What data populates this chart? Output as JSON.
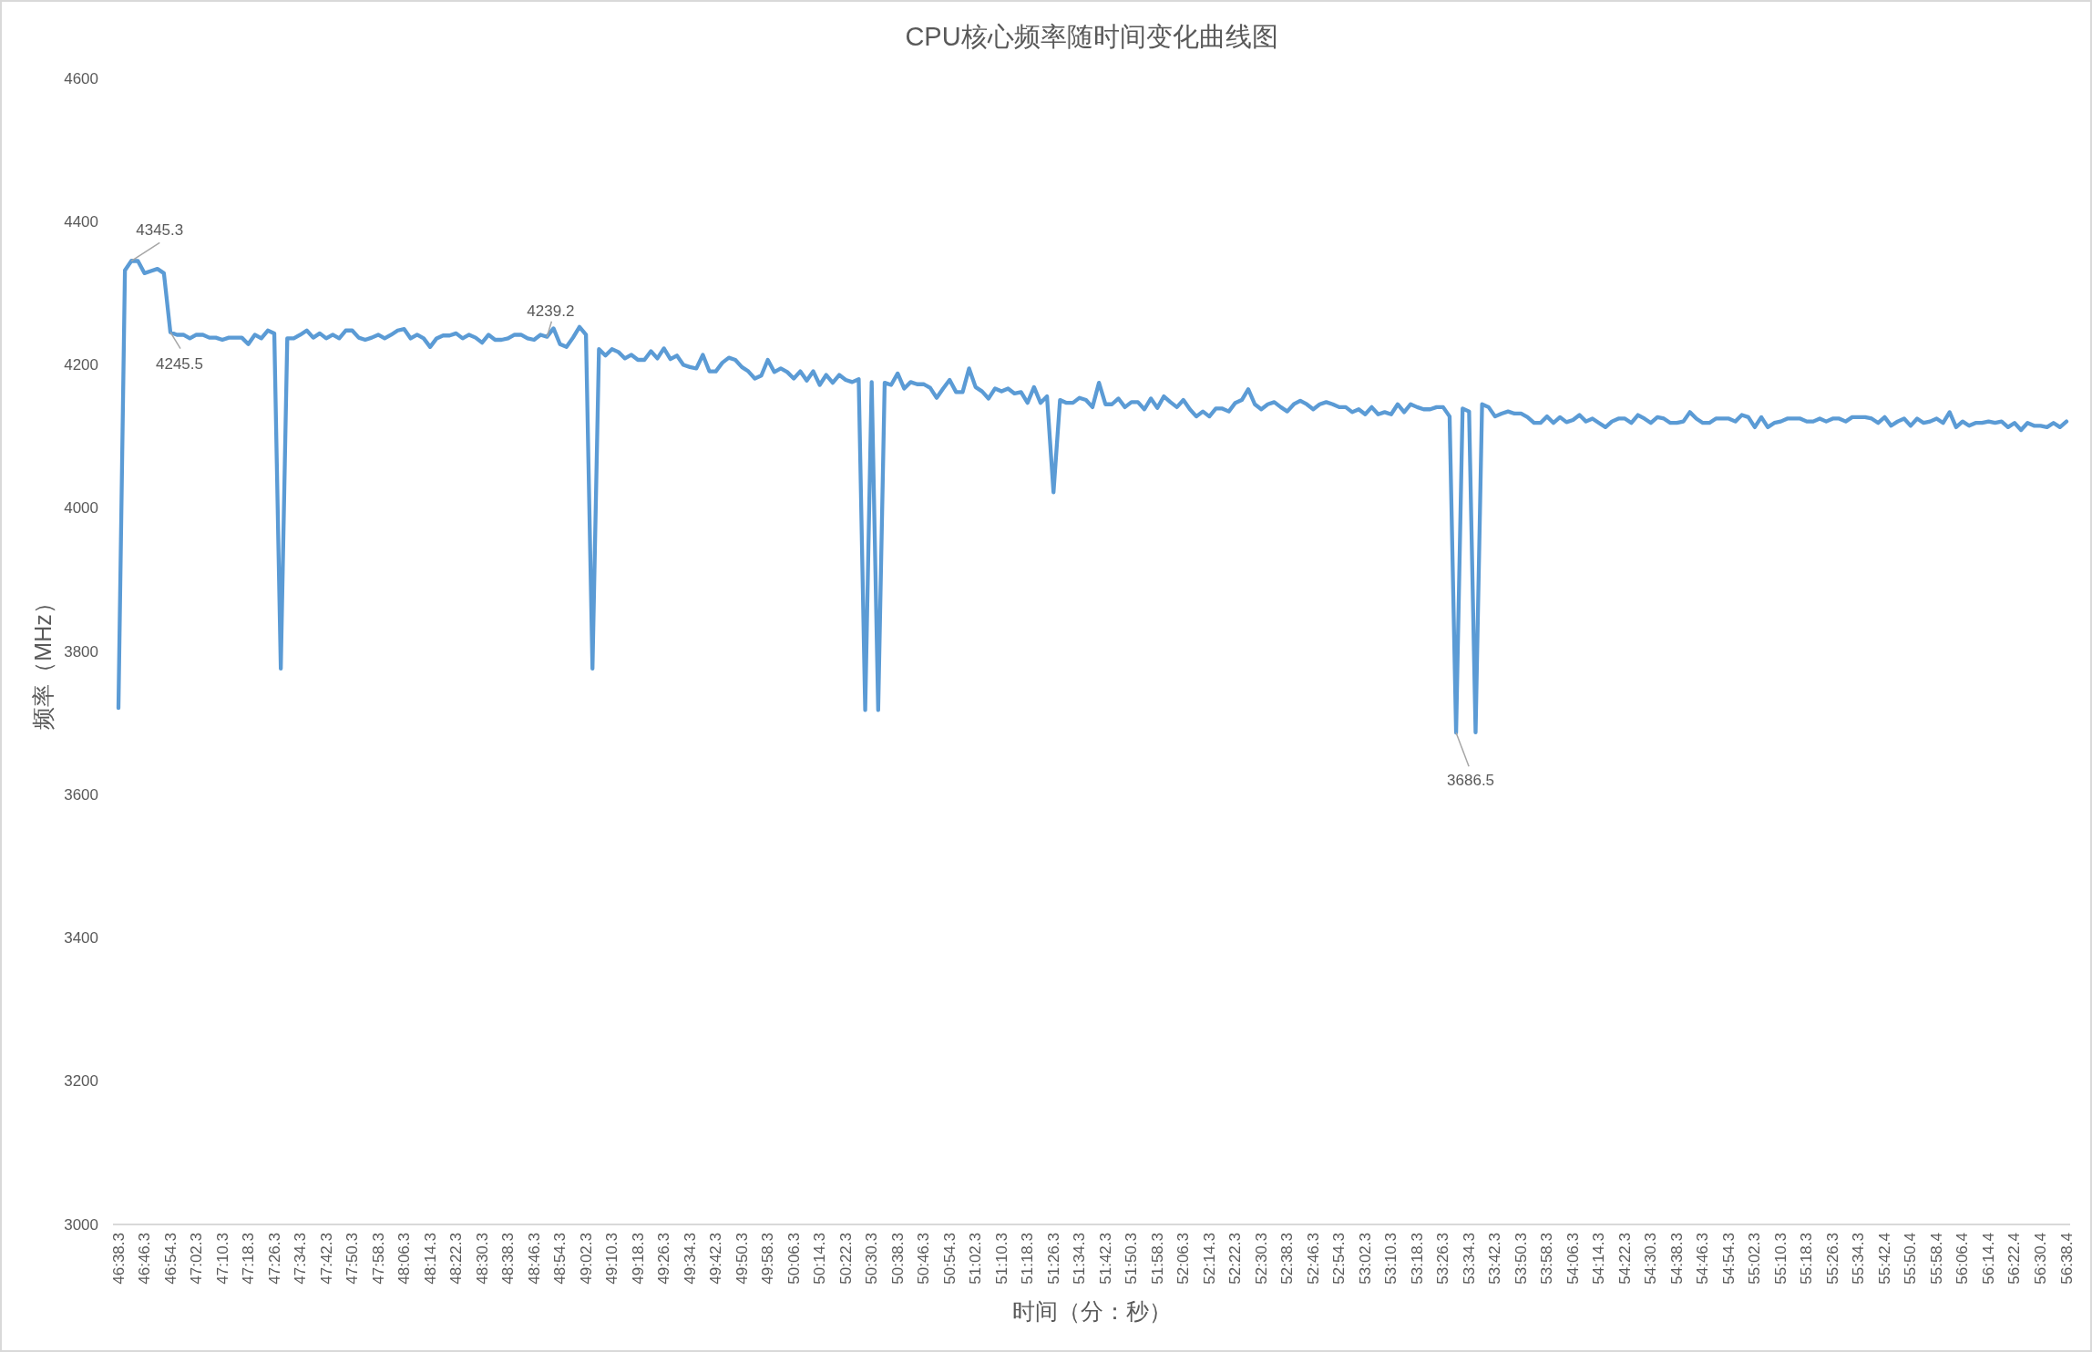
{
  "chart_data": {
    "type": "line",
    "title": "CPU核心频率随时间变化曲线图",
    "xlabel": "时间（分：秒）",
    "ylabel": "频率（MHz）",
    "categories": [
      "46:38.3",
      null,
      null,
      null,
      "46:46.3",
      null,
      null,
      null,
      "46:54.3",
      null,
      null,
      null,
      "47:02.3",
      null,
      null,
      null,
      "47:10.3",
      null,
      null,
      null,
      "47:18.3",
      null,
      null,
      null,
      "47:26.3",
      null,
      null,
      null,
      "47:34.3",
      null,
      null,
      null,
      "47:42.3",
      null,
      null,
      null,
      "47:50.3",
      null,
      null,
      null,
      "47:58.3",
      null,
      null,
      null,
      "48:06.3",
      null,
      null,
      null,
      "48:14.3",
      null,
      null,
      null,
      "48:22.3",
      null,
      null,
      null,
      "48:30.3",
      null,
      null,
      null,
      "48:38.3",
      null,
      null,
      null,
      "48:46.3",
      null,
      null,
      null,
      "48:54.3",
      null,
      null,
      null,
      "49:02.3",
      null,
      null,
      null,
      "49:10.3",
      null,
      null,
      null,
      "49:18.3",
      null,
      null,
      null,
      "49:26.3",
      null,
      null,
      null,
      "49:34.3",
      null,
      null,
      null,
      "49:42.3",
      null,
      null,
      null,
      "49:50.3",
      null,
      null,
      null,
      "49:58.3",
      null,
      null,
      null,
      "50:06.3",
      null,
      null,
      null,
      "50:14.3",
      null,
      null,
      null,
      "50:22.3",
      null,
      null,
      null,
      "50:30.3",
      null,
      null,
      null,
      "50:38.3",
      null,
      null,
      null,
      "50:46.3",
      null,
      null,
      null,
      "50:54.3",
      null,
      null,
      null,
      "51:02.3",
      null,
      null,
      null,
      "51:10.3",
      null,
      null,
      null,
      "51:18.3",
      null,
      null,
      null,
      "51:26.3",
      null,
      null,
      null,
      "51:34.3",
      null,
      null,
      null,
      "51:42.3",
      null,
      null,
      null,
      "51:50.3",
      null,
      null,
      null,
      "51:58.3",
      null,
      null,
      null,
      "52:06.3",
      null,
      null,
      null,
      "52:14.3",
      null,
      null,
      null,
      "52:22.3",
      null,
      null,
      null,
      "52:30.3",
      null,
      null,
      null,
      "52:38.3",
      null,
      null,
      null,
      "52:46.3",
      null,
      null,
      null,
      "52:54.3",
      null,
      null,
      null,
      "53:02.3",
      null,
      null,
      null,
      "53:10.3",
      null,
      null,
      null,
      "53:18.3",
      null,
      null,
      null,
      "53:26.3",
      null,
      null,
      null,
      "53:34.3",
      null,
      null,
      null,
      "53:42.3",
      null,
      null,
      null,
      "53:50.3",
      null,
      null,
      null,
      "53:58.3",
      null,
      null,
      null,
      "54:06.3",
      null,
      null,
      null,
      "54:14.3",
      null,
      null,
      null,
      "54:22.3",
      null,
      null,
      null,
      "54:30.3",
      null,
      null,
      null,
      "54:38.3",
      null,
      null,
      null,
      "54:46.3",
      null,
      null,
      null,
      "54:54.3",
      null,
      null,
      null,
      "55:02.3",
      null,
      null,
      null,
      "55:10.3",
      null,
      null,
      null,
      "55:18.3",
      null,
      null,
      null,
      "55:26.3",
      null,
      null,
      null,
      "55:34.3",
      null,
      null,
      null,
      "55:42.4",
      null,
      null,
      null,
      "55:50.4",
      null,
      null,
      null,
      "55:58.4",
      null,
      null,
      null,
      "56:06.4",
      null,
      null,
      null,
      "56:14.4",
      null,
      null,
      null,
      "56:22.4",
      null,
      null,
      null,
      "56:30.4",
      null,
      null,
      null,
      "56:38.4"
    ],
    "series": [
      {
        "color": "#5b9bd5",
        "values": [
          3721,
          4332,
          4345.3,
          4345,
          4328,
          4331,
          4334,
          4328,
          4245.5,
          4242,
          4242,
          4237,
          4242,
          4242,
          4238,
          4238,
          4235,
          4238,
          4238,
          4238,
          4229,
          4242,
          4237,
          4248,
          4244,
          3776,
          4237,
          4237,
          4242,
          4248,
          4238,
          4244,
          4237,
          4242,
          4237,
          4248,
          4248,
          4238,
          4235,
          4238,
          4242,
          4237,
          4242,
          4248,
          4250,
          4237,
          4242,
          4237,
          4225,
          4237,
          4241,
          4241,
          4244,
          4237,
          4242,
          4238,
          4231,
          4242,
          4235,
          4235,
          4237,
          4242,
          4242,
          4237,
          4235,
          4242,
          4239.2,
          4251,
          4229,
          4225,
          4238,
          4253,
          4242,
          3776,
          4222,
          4213,
          4222,
          4218,
          4209,
          4214,
          4207,
          4207,
          4219,
          4209,
          4223,
          4208,
          4213,
          4200,
          4197,
          4195,
          4214,
          4191,
          4191,
          4203,
          4210,
          4207,
          4197,
          4191,
          4181,
          4185,
          4207,
          4190,
          4195,
          4190,
          4181,
          4191,
          4178,
          4191,
          4172,
          4186,
          4175,
          4186,
          4179,
          4176,
          4180,
          3718,
          4176,
          3718,
          4175,
          4172,
          4188,
          4167,
          4176,
          4173,
          4173,
          4168,
          4154,
          4167,
          4179,
          4162,
          4162,
          4195,
          4169,
          4163,
          4153,
          4167,
          4163,
          4167,
          4160,
          4162,
          4147,
          4169,
          4147,
          4156,
          4022,
          4151,
          4147,
          4147,
          4154,
          4151,
          4141,
          4175,
          4145,
          4145,
          4153,
          4141,
          4148,
          4148,
          4138,
          4153,
          4140,
          4156,
          4148,
          4141,
          4151,
          4138,
          4128,
          4135,
          4128,
          4139,
          4139,
          4135,
          4147,
          4151,
          4166,
          4145,
          4138,
          4145,
          4148,
          4141,
          4135,
          4145,
          4150,
          4145,
          4138,
          4145,
          4148,
          4145,
          4141,
          4141,
          4134,
          4138,
          4131,
          4141,
          4131,
          4134,
          4131,
          4145,
          4134,
          4145,
          4141,
          4138,
          4138,
          4141,
          4141,
          4128,
          3686.5,
          4139,
          4135,
          3687,
          4145,
          4141,
          4128,
          4132,
          4135,
          4132,
          4132,
          4127,
          4119,
          4119,
          4128,
          4119,
          4127,
          4120,
          4123,
          4130,
          4121,
          4125,
          4119,
          4113,
          4121,
          4125,
          4125,
          4119,
          4130,
          4125,
          4119,
          4127,
          4125,
          4119,
          4119,
          4121,
          4134,
          4125,
          4119,
          4119,
          4125,
          4125,
          4125,
          4121,
          4130,
          4127,
          4113,
          4127,
          4113,
          4119,
          4121,
          4125,
          4125,
          4125,
          4121,
          4121,
          4125,
          4121,
          4125,
          4125,
          4121,
          4127,
          4127,
          4127,
          4125,
          4119,
          4127,
          4115,
          4121,
          4125,
          4115,
          4125,
          4119,
          4121,
          4125,
          4119,
          4134,
          4113,
          4121,
          4115,
          4119,
          4119,
          4121,
          4119,
          4121,
          4113,
          4119,
          4109,
          4119,
          4115,
          4115,
          4113,
          4119,
          4113,
          4121
        ],
        "value_labels": [
          null,
          null,
          "4345.3",
          null,
          null,
          null,
          null,
          null,
          "4245.5",
          null,
          null,
          null,
          null,
          null,
          null,
          null,
          null,
          null,
          null,
          null,
          null,
          null,
          null,
          null,
          null,
          null,
          null,
          null,
          null,
          null,
          null,
          null,
          null,
          null,
          null,
          null,
          null,
          null,
          null,
          null,
          null,
          null,
          null,
          null,
          null,
          null,
          null,
          null,
          null,
          null,
          null,
          null,
          null,
          null,
          null,
          null,
          null,
          null,
          null,
          null,
          null,
          null,
          null,
          null,
          null,
          null,
          "4239.2",
          null,
          null,
          null,
          null,
          null,
          null,
          null,
          null,
          null,
          null,
          null,
          null,
          null,
          null,
          null,
          null,
          null,
          null,
          null,
          null,
          null,
          null,
          null,
          null,
          null,
          null,
          null,
          null,
          null,
          null,
          null,
          null,
          null,
          null,
          null,
          null,
          null,
          null,
          null,
          null,
          null,
          null,
          null,
          null,
          null,
          null,
          null,
          null,
          null,
          null,
          null,
          null,
          null,
          null,
          null,
          null,
          null,
          null,
          null,
          null,
          null,
          null,
          null,
          null,
          null,
          null,
          null,
          null,
          null,
          null,
          null,
          null,
          null,
          null,
          null,
          null,
          null,
          null,
          null,
          null,
          null,
          null,
          null,
          null,
          null,
          null,
          null,
          null,
          null,
          null,
          null,
          null,
          null,
          null,
          null,
          null,
          null,
          null,
          null,
          null,
          null,
          null,
          null,
          null,
          null,
          null,
          null,
          null,
          null,
          null,
          null,
          null,
          null,
          null,
          null,
          null,
          null,
          null,
          null,
          null,
          null,
          null,
          null,
          null,
          null,
          null,
          null,
          null,
          null,
          null,
          null,
          null,
          null,
          null,
          null,
          null,
          null,
          null,
          null,
          "3686.5",
          null,
          null,
          null,
          null,
          null,
          null,
          null,
          null,
          null,
          null,
          null,
          null,
          null,
          null,
          null,
          null,
          null,
          null,
          null,
          null,
          null,
          null,
          null,
          null,
          null,
          null,
          null,
          null,
          null,
          null,
          null,
          null,
          null,
          null,
          null,
          null,
          null,
          null,
          null,
          null,
          null,
          null,
          null,
          null,
          null,
          null,
          null,
          null,
          null,
          null,
          null,
          null,
          null,
          null,
          null,
          null,
          null,
          null,
          null,
          null,
          null,
          null,
          null,
          null,
          null,
          null,
          null,
          null,
          null,
          null,
          null,
          null,
          null,
          null,
          null,
          null,
          null,
          null,
          null,
          null,
          null,
          null,
          null,
          null,
          null,
          null,
          null,
          null,
          null,
          null,
          null,
          null,
          null,
          null
        ]
      }
    ],
    "ylim": [
      3000,
      4600
    ],
    "yticks": [
      3000,
      3200,
      3400,
      3600,
      3800,
      4000,
      4200,
      4400,
      4600
    ],
    "marker": "none",
    "line_style": "solid"
  }
}
